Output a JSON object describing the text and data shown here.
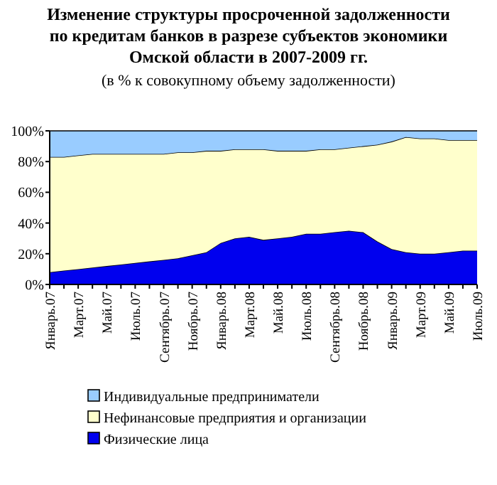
{
  "chart_data": {
    "type": "area",
    "title": "Изменение структуры просроченной задолженности по кредитам банков в разрезе субъектов экономики Омской области в 2007-2009 гг.",
    "subtitle": "(в % к совокупному объему задолженности)",
    "categories": [
      "Январь.07",
      null,
      "Март.07",
      null,
      "Май.07",
      null,
      "Июль.07",
      null,
      "Сентябрь.07",
      null,
      "Ноябрь.07",
      null,
      "Январь.08",
      null,
      "Март.08",
      null,
      "Май.08",
      null,
      "Июль.08",
      null,
      "Сентябрь.08",
      null,
      "Ноябрь.08",
      null,
      "Январь.09",
      null,
      "Март.09",
      null,
      "Май.09",
      null,
      "Июль.09"
    ],
    "stacked": true,
    "legend": "bottom",
    "ylim": [
      0,
      100
    ],
    "yticks": [
      {
        "value": 0,
        "label": "0%"
      },
      {
        "value": 20,
        "label": "20%"
      },
      {
        "value": 40,
        "label": "40%"
      },
      {
        "value": 60,
        "label": "60%"
      },
      {
        "value": 80,
        "label": "80%"
      },
      {
        "value": 100,
        "label": "100%"
      }
    ],
    "series": [
      {
        "name": "Физические лица",
        "color": "#0000ee",
        "values": [
          8,
          9,
          10,
          11,
          12,
          13,
          14,
          15,
          16,
          17,
          19,
          21,
          27,
          30,
          31,
          29,
          30,
          31,
          33,
          33,
          34,
          35,
          34,
          28,
          23,
          21,
          20,
          20,
          21,
          22,
          22
        ]
      },
      {
        "name": "Нефинансовые предприятия и организации",
        "color": "#ffffcc",
        "values": [
          75,
          74,
          74,
          74,
          73,
          72,
          71,
          70,
          69,
          69,
          67,
          66,
          60,
          58,
          57,
          59,
          57,
          56,
          54,
          55,
          54,
          54,
          56,
          63,
          70,
          75,
          75,
          75,
          73,
          72,
          72
        ]
      },
      {
        "name": "Индивидуальные предприниматели",
        "color": "#99ccff",
        "values": [
          17,
          17,
          16,
          15,
          15,
          15,
          15,
          15,
          15,
          14,
          14,
          13,
          13,
          12,
          12,
          12,
          13,
          13,
          13,
          12,
          12,
          11,
          10,
          9,
          7,
          4,
          5,
          5,
          6,
          6,
          6
        ]
      }
    ]
  }
}
